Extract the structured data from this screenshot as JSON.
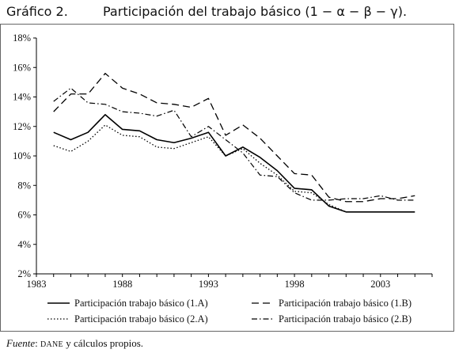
{
  "header": {
    "label": "Gráfico 2.",
    "title": "Participación del trabajo básico (1 − α − β − γ)."
  },
  "source": {
    "prefix": "Fuente",
    "dane": "DANE",
    "rest": " y cálculos propios."
  },
  "chart_data": {
    "type": "line",
    "title": "Participación del trabajo básico (1 − α − β − γ).",
    "xlabel": "",
    "ylabel": "",
    "xlim": [
      1983,
      2006
    ],
    "ylim": [
      2,
      18
    ],
    "x_ticks": [
      1983,
      1988,
      1993,
      1998,
      2003
    ],
    "x_tick_labels": [
      "1983",
      "1988",
      "1993",
      "1998",
      "2003"
    ],
    "y_ticks": [
      2,
      4,
      6,
      8,
      10,
      12,
      14,
      16,
      18
    ],
    "y_tick_labels": [
      "2%",
      "4%",
      "6%",
      "8%",
      "10%",
      "12%",
      "14%",
      "16%",
      "18%"
    ],
    "x": [
      1984,
      1985,
      1986,
      1987,
      1988,
      1989,
      1990,
      1991,
      1992,
      1993,
      1994,
      1995,
      1996,
      1997,
      1998,
      1999,
      2000,
      2001,
      2002,
      2003,
      2004,
      2005
    ],
    "series": [
      {
        "name": "Participación trabajo básico (1.A)",
        "style": "solid",
        "values": [
          11.6,
          11.1,
          11.6,
          12.8,
          11.8,
          11.7,
          11.1,
          10.9,
          11.2,
          11.6,
          10.0,
          10.6,
          9.9,
          9.0,
          7.8,
          7.7,
          6.6,
          6.2,
          6.2,
          6.2,
          6.2,
          6.2
        ]
      },
      {
        "name": "Participación trabajo básico (1.B)",
        "style": "dashed",
        "values": [
          13.0,
          14.2,
          14.2,
          15.6,
          14.6,
          14.2,
          13.6,
          13.5,
          13.3,
          13.9,
          11.4,
          12.1,
          11.2,
          10.0,
          8.8,
          8.7,
          7.2,
          6.9,
          6.9,
          7.1,
          7.1,
          7.3
        ]
      },
      {
        "name": "Participación trabajo básico (2.A)",
        "style": "dotted",
        "values": [
          10.7,
          10.3,
          11.0,
          12.1,
          11.4,
          11.3,
          10.6,
          10.5,
          10.9,
          11.3,
          10.0,
          10.5,
          9.5,
          8.7,
          7.6,
          7.5,
          6.7,
          6.2,
          6.2,
          6.2,
          6.2,
          6.2
        ]
      },
      {
        "name": "Participación trabajo básico (2.B)",
        "style": "dashdot",
        "values": [
          13.7,
          14.6,
          13.6,
          13.5,
          13.0,
          12.9,
          12.7,
          13.1,
          11.3,
          12.0,
          11.1,
          10.2,
          8.7,
          8.6,
          7.5,
          7.0,
          7.0,
          7.1,
          7.1,
          7.3,
          7.0,
          7.0
        ]
      }
    ],
    "grid": false,
    "legend_position": "bottom"
  }
}
